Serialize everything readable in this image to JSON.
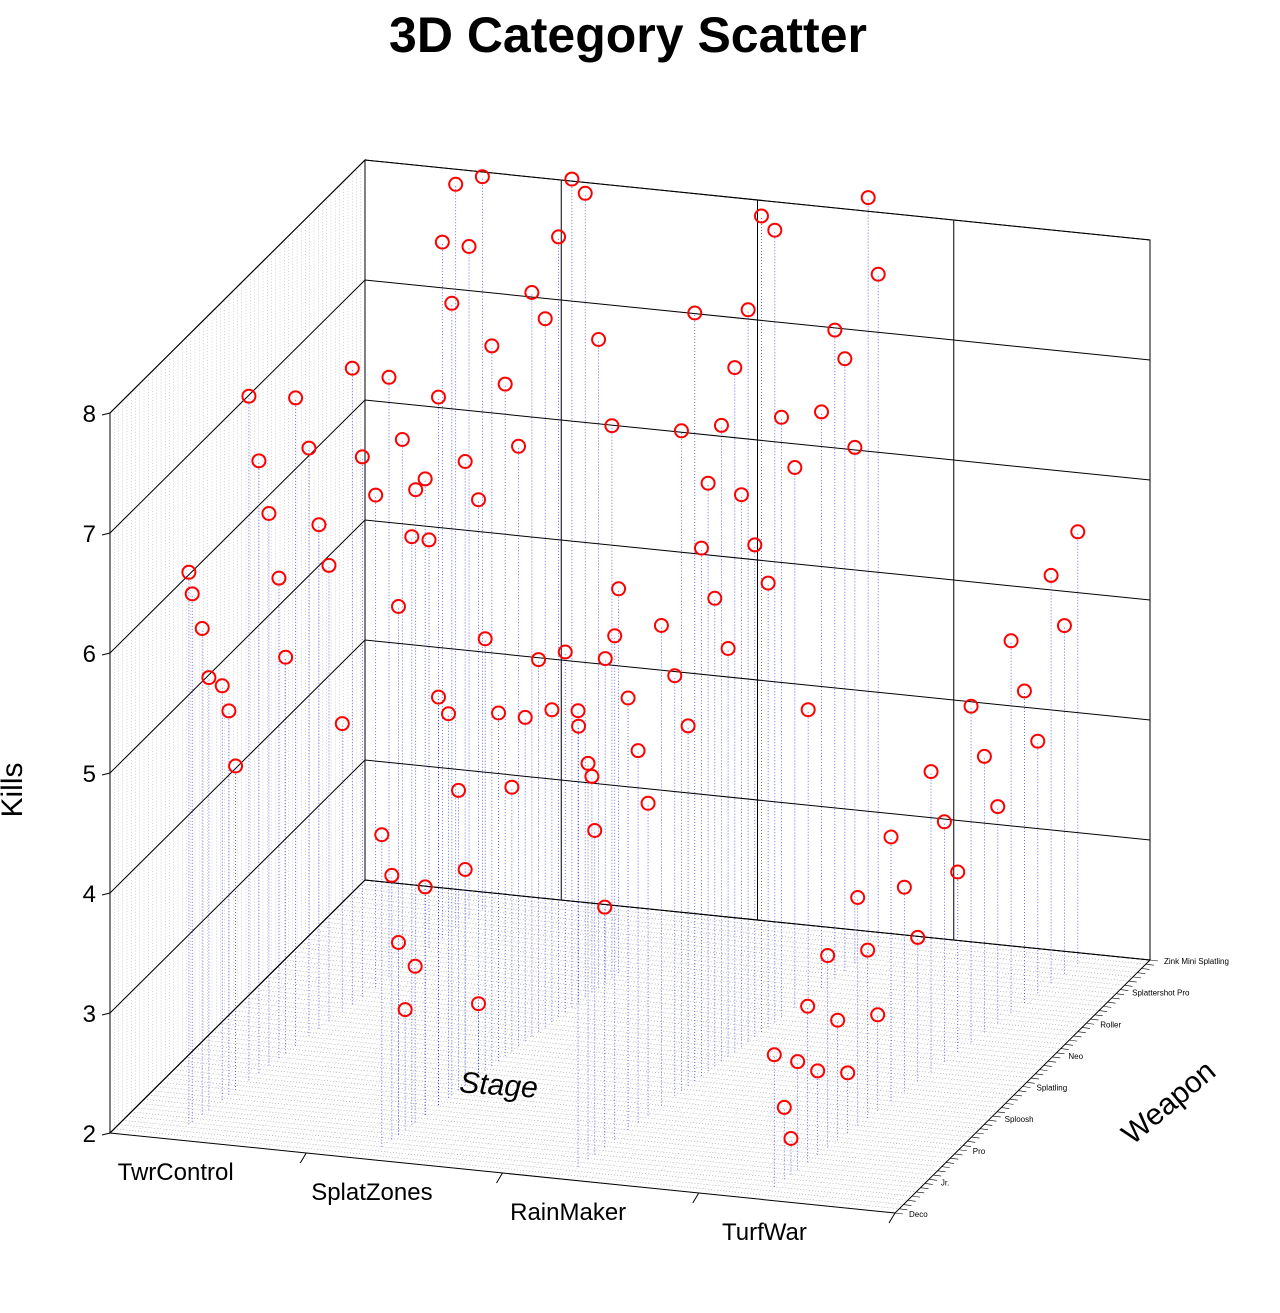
{
  "chart_data": {
    "type": "scatter",
    "projection": "3d",
    "title": "3D Category Scatter",
    "xlabel": "Stage",
    "ylabel": "Weapon",
    "zlabel": "Kills",
    "x_categories": [
      "TwrControl",
      "SplatZones",
      "RainMaker",
      "TurfWar"
    ],
    "z_ticks": [
      "2",
      "3",
      "4",
      "5",
      "6",
      "7",
      "8"
    ],
    "zlim": [
      2,
      8
    ],
    "weapon_tick_labels_visible": [
      "Zink Mini Splatling",
      "Splattershot Pro",
      "Roller",
      "Neo",
      "Splatling",
      "Sploosh",
      "Pro",
      "Jr.",
      "Deco"
    ],
    "marker": "open circle",
    "marker_color": "#ff0000",
    "drop_line_color": "#0000cc",
    "grid": true,
    "points": [
      {
        "stage": "TwrControl",
        "weapon_pos": 0.06,
        "kills": 6.6
      },
      {
        "stage": "TwrControl",
        "weapon_pos": 0.07,
        "kills": 6.4
      },
      {
        "stage": "TwrControl",
        "weapon_pos": 0.1,
        "kills": 6.05
      },
      {
        "stage": "TwrControl",
        "weapon_pos": 0.12,
        "kills": 5.6
      },
      {
        "stage": "TwrControl",
        "weapon_pos": 0.16,
        "kills": 5.45
      },
      {
        "stage": "TwrControl",
        "weapon_pos": 0.18,
        "kills": 5.2
      },
      {
        "stage": "TwrControl",
        "weapon_pos": 0.2,
        "kills": 4.7
      },
      {
        "stage": "TwrControl",
        "weapon_pos": 0.24,
        "kills": 7.7
      },
      {
        "stage": "TwrControl",
        "weapon_pos": 0.27,
        "kills": 7.1
      },
      {
        "stage": "TwrControl",
        "weapon_pos": 0.3,
        "kills": 6.6
      },
      {
        "stage": "TwrControl",
        "weapon_pos": 0.33,
        "kills": 6.0
      },
      {
        "stage": "TwrControl",
        "weapon_pos": 0.35,
        "kills": 5.3
      },
      {
        "stage": "TwrControl",
        "weapon_pos": 0.38,
        "kills": 7.4
      },
      {
        "stage": "TwrControl",
        "weapon_pos": 0.42,
        "kills": 6.9
      },
      {
        "stage": "TwrControl",
        "weapon_pos": 0.45,
        "kills": 6.2
      },
      {
        "stage": "TwrControl",
        "weapon_pos": 0.48,
        "kills": 5.8
      },
      {
        "stage": "TwrControl",
        "weapon_pos": 0.52,
        "kills": 4.4
      },
      {
        "stage": "TwrControl",
        "weapon_pos": 0.55,
        "kills": 7.3
      },
      {
        "stage": "TwrControl",
        "weapon_pos": 0.58,
        "kills": 6.5
      },
      {
        "stage": "TwrControl",
        "weapon_pos": 0.62,
        "kills": 6.1
      },
      {
        "stage": "TwrControl",
        "weapon_pos": 0.66,
        "kills": 7.0
      },
      {
        "stage": "TwrControl",
        "weapon_pos": 0.7,
        "kills": 6.4
      },
      {
        "stage": "TwrControl",
        "weapon_pos": 0.74,
        "kills": 5.9
      },
      {
        "stage": "TwrControl",
        "weapon_pos": 0.78,
        "kills": 5.4
      },
      {
        "stage": "TwrControl",
        "weapon_pos": 0.82,
        "kills": 7.8
      },
      {
        "stage": "TwrControl",
        "weapon_pos": 0.86,
        "kills": 8.2
      },
      {
        "stage": "TwrControl",
        "weapon_pos": 0.9,
        "kills": 7.6
      },
      {
        "stage": "TwrControl",
        "weapon_pos": 0.94,
        "kills": 8.1
      },
      {
        "stage": "SplatZones",
        "weapon_pos": 0.05,
        "kills": 4.6
      },
      {
        "stage": "SplatZones",
        "weapon_pos": 0.08,
        "kills": 4.2
      },
      {
        "stage": "SplatZones",
        "weapon_pos": 0.1,
        "kills": 3.6
      },
      {
        "stage": "SplatZones",
        "weapon_pos": 0.12,
        "kills": 3.0
      },
      {
        "stage": "SplatZones",
        "weapon_pos": 0.15,
        "kills": 3.3
      },
      {
        "stage": "SplatZones",
        "weapon_pos": 0.18,
        "kills": 3.9
      },
      {
        "stage": "SplatZones",
        "weapon_pos": 0.22,
        "kills": 5.4
      },
      {
        "stage": "SplatZones",
        "weapon_pos": 0.25,
        "kills": 5.2
      },
      {
        "stage": "SplatZones",
        "weapon_pos": 0.28,
        "kills": 4.5
      },
      {
        "stage": "SplatZones",
        "weapon_pos": 0.3,
        "kills": 3.8
      },
      {
        "stage": "SplatZones",
        "weapon_pos": 0.34,
        "kills": 2.6
      },
      {
        "stage": "SplatZones",
        "weapon_pos": 0.36,
        "kills": 5.6
      },
      {
        "stage": "SplatZones",
        "weapon_pos": 0.4,
        "kills": 4.9
      },
      {
        "stage": "SplatZones",
        "weapon_pos": 0.44,
        "kills": 4.2
      },
      {
        "stage": "SplatZones",
        "weapon_pos": 0.48,
        "kills": 4.7
      },
      {
        "stage": "SplatZones",
        "weapon_pos": 0.52,
        "kills": 5.1
      },
      {
        "stage": "SplatZones",
        "weapon_pos": 0.56,
        "kills": 4.6
      },
      {
        "stage": "SplatZones",
        "weapon_pos": 0.6,
        "kills": 5.0
      },
      {
        "stage": "SplatZones",
        "weapon_pos": 0.64,
        "kills": 4.3
      },
      {
        "stage": "SplatZones",
        "weapon_pos": 0.68,
        "kills": 3.8
      },
      {
        "stage": "SplatZones",
        "weapon_pos": 0.72,
        "kills": 4.7
      },
      {
        "stage": "SplatZones",
        "weapon_pos": 0.76,
        "kills": 5.2
      },
      {
        "stage": "SplatZones",
        "weapon_pos": 0.1,
        "kills": 6.4
      },
      {
        "stage": "SplatZones",
        "weapon_pos": 0.14,
        "kills": 6.9
      },
      {
        "stage": "SplatZones",
        "weapon_pos": 0.18,
        "kills": 7.3
      },
      {
        "stage": "SplatZones",
        "weapon_pos": 0.22,
        "kills": 7.9
      },
      {
        "stage": "SplatZones",
        "weapon_pos": 0.26,
        "kills": 8.6
      },
      {
        "stage": "SplatZones",
        "weapon_pos": 0.3,
        "kills": 7.2
      },
      {
        "stage": "SplatZones",
        "weapon_pos": 0.34,
        "kills": 6.8
      },
      {
        "stage": "SplatZones",
        "weapon_pos": 0.38,
        "kills": 8.0
      },
      {
        "stage": "SplatZones",
        "weapon_pos": 0.42,
        "kills": 7.6
      },
      {
        "stage": "SplatZones",
        "weapon_pos": 0.46,
        "kills": 7.0
      },
      {
        "stage": "SplatZones",
        "weapon_pos": 0.5,
        "kills": 8.2
      },
      {
        "stage": "SplatZones",
        "weapon_pos": 0.54,
        "kills": 7.9
      },
      {
        "stage": "SplatZones",
        "weapon_pos": 0.58,
        "kills": 8.5
      },
      {
        "stage": "SplatZones",
        "weapon_pos": 0.62,
        "kills": 8.9
      },
      {
        "stage": "SplatZones",
        "weapon_pos": 0.66,
        "kills": 8.7
      },
      {
        "stage": "SplatZones",
        "weapon_pos": 0.7,
        "kills": 7.4
      },
      {
        "stage": "SplatZones",
        "weapon_pos": 0.74,
        "kills": 6.6
      },
      {
        "stage": "RainMaker",
        "weapon_pos": 0.05,
        "kills": 5.8
      },
      {
        "stage": "RainMaker",
        "weapon_pos": 0.08,
        "kills": 5.3
      },
      {
        "stage": "RainMaker",
        "weapon_pos": 0.1,
        "kills": 4.7
      },
      {
        "stage": "RainMaker",
        "weapon_pos": 0.13,
        "kills": 4.0
      },
      {
        "stage": "RainMaker",
        "weapon_pos": 0.16,
        "kills": 6.2
      },
      {
        "stage": "RainMaker",
        "weapon_pos": 0.2,
        "kills": 5.6
      },
      {
        "stage": "RainMaker",
        "weapon_pos": 0.23,
        "kills": 5.1
      },
      {
        "stage": "RainMaker",
        "weapon_pos": 0.26,
        "kills": 4.6
      },
      {
        "stage": "RainMaker",
        "weapon_pos": 0.3,
        "kills": 6.0
      },
      {
        "stage": "RainMaker",
        "weapon_pos": 0.34,
        "kills": 5.5
      },
      {
        "stage": "RainMaker",
        "weapon_pos": 0.38,
        "kills": 5.0
      },
      {
        "stage": "RainMaker",
        "weapon_pos": 0.42,
        "kills": 6.4
      },
      {
        "stage": "RainMaker",
        "weapon_pos": 0.46,
        "kills": 5.9
      },
      {
        "stage": "RainMaker",
        "weapon_pos": 0.5,
        "kills": 5.4
      },
      {
        "stage": "RainMaker",
        "weapon_pos": 0.54,
        "kills": 6.6
      },
      {
        "stage": "RainMaker",
        "weapon_pos": 0.58,
        "kills": 6.1
      },
      {
        "stage": "RainMaker",
        "weapon_pos": 0.62,
        "kills": 5.7
      },
      {
        "stage": "RainMaker",
        "weapon_pos": 0.66,
        "kills": 7.0
      },
      {
        "stage": "RainMaker",
        "weapon_pos": 0.7,
        "kills": 6.5
      },
      {
        "stage": "RainMaker",
        "weapon_pos": 0.74,
        "kills": 4.4
      },
      {
        "stage": "RainMaker",
        "weapon_pos": 0.78,
        "kills": 6.8
      },
      {
        "stage": "RainMaker",
        "weapon_pos": 0.82,
        "kills": 7.4
      },
      {
        "stage": "RainMaker",
        "weapon_pos": 0.85,
        "kills": 7.1
      },
      {
        "stage": "RainMaker",
        "weapon_pos": 0.88,
        "kills": 6.3
      },
      {
        "stage": "RainMaker",
        "weapon_pos": 0.92,
        "kills": 8.3
      },
      {
        "stage": "RainMaker",
        "weapon_pos": 0.95,
        "kills": 7.6
      },
      {
        "stage": "RainMaker",
        "weapon_pos": 0.64,
        "kills": 8.6
      },
      {
        "stage": "RainMaker",
        "weapon_pos": 0.6,
        "kills": 8.8
      },
      {
        "stage": "RainMaker",
        "weapon_pos": 0.56,
        "kills": 8.1
      },
      {
        "stage": "RainMaker",
        "weapon_pos": 0.52,
        "kills": 7.7
      },
      {
        "stage": "RainMaker",
        "weapon_pos": 0.48,
        "kills": 7.3
      },
      {
        "stage": "RainMaker",
        "weapon_pos": 0.44,
        "kills": 6.9
      },
      {
        "stage": "RainMaker",
        "weapon_pos": 0.4,
        "kills": 8.4
      },
      {
        "stage": "RainMaker",
        "weapon_pos": 0.36,
        "kills": 7.5
      },
      {
        "stage": "TurfWar",
        "weapon_pos": 0.05,
        "kills": 3.1
      },
      {
        "stage": "TurfWar",
        "weapon_pos": 0.08,
        "kills": 2.6
      },
      {
        "stage": "TurfWar",
        "weapon_pos": 0.1,
        "kills": 2.3
      },
      {
        "stage": "TurfWar",
        "weapon_pos": 0.12,
        "kills": 2.9
      },
      {
        "stage": "TurfWar",
        "weapon_pos": 0.15,
        "kills": 3.3
      },
      {
        "stage": "TurfWar",
        "weapon_pos": 0.18,
        "kills": 2.7
      },
      {
        "stage": "TurfWar",
        "weapon_pos": 0.21,
        "kills": 3.6
      },
      {
        "stage": "TurfWar",
        "weapon_pos": 0.24,
        "kills": 3.0
      },
      {
        "stage": "TurfWar",
        "weapon_pos": 0.27,
        "kills": 2.5
      },
      {
        "stage": "TurfWar",
        "weapon_pos": 0.3,
        "kills": 3.9
      },
      {
        "stage": "TurfWar",
        "weapon_pos": 0.33,
        "kills": 3.4
      },
      {
        "stage": "TurfWar",
        "weapon_pos": 0.36,
        "kills": 2.8
      },
      {
        "stage": "TurfWar",
        "weapon_pos": 0.4,
        "kills": 4.2
      },
      {
        "stage": "TurfWar",
        "weapon_pos": 0.44,
        "kills": 3.7
      },
      {
        "stage": "TurfWar",
        "weapon_pos": 0.48,
        "kills": 3.2
      },
      {
        "stage": "TurfWar",
        "weapon_pos": 0.52,
        "kills": 4.5
      },
      {
        "stage": "TurfWar",
        "weapon_pos": 0.56,
        "kills": 4.0
      },
      {
        "stage": "TurfWar",
        "weapon_pos": 0.6,
        "kills": 3.5
      },
      {
        "stage": "TurfWar",
        "weapon_pos": 0.64,
        "kills": 4.8
      },
      {
        "stage": "TurfWar",
        "weapon_pos": 0.68,
        "kills": 4.3
      },
      {
        "stage": "TurfWar",
        "weapon_pos": 0.72,
        "kills": 3.8
      },
      {
        "stage": "TurfWar",
        "weapon_pos": 0.76,
        "kills": 5.1
      },
      {
        "stage": "TurfWar",
        "weapon_pos": 0.8,
        "kills": 4.6
      },
      {
        "stage": "TurfWar",
        "weapon_pos": 0.84,
        "kills": 4.1
      },
      {
        "stage": "TurfWar",
        "weapon_pos": 0.88,
        "kills": 5.4
      },
      {
        "stage": "TurfWar",
        "weapon_pos": 0.92,
        "kills": 4.9
      },
      {
        "stage": "TurfWar",
        "weapon_pos": 0.96,
        "kills": 5.6
      }
    ]
  }
}
